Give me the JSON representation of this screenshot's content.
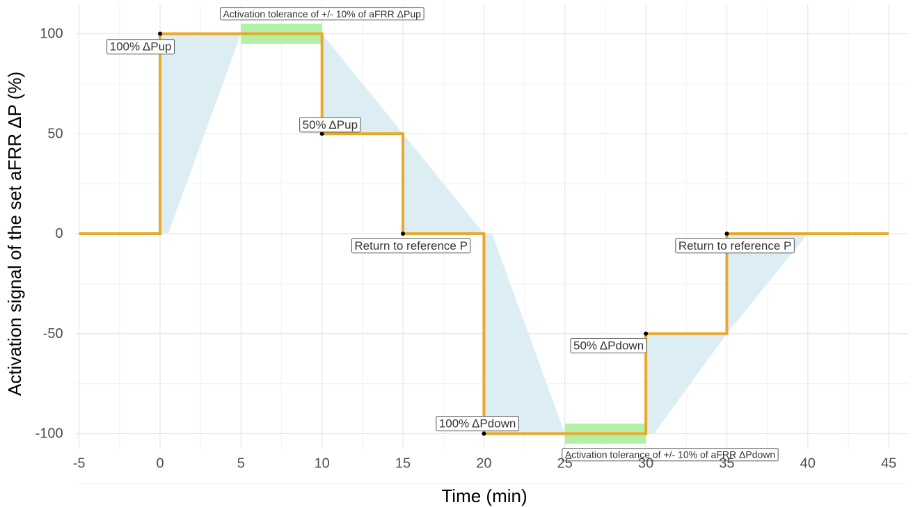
{
  "chart_data": {
    "type": "line",
    "title": "",
    "xlabel": "Time (min)",
    "ylabel": "Activation signal of the set aFRR ΔP (%)",
    "xlim": [
      -5,
      45
    ],
    "ylim": [
      -100,
      100
    ],
    "x_ticks": [
      -5,
      0,
      5,
      10,
      15,
      20,
      25,
      30,
      35,
      40,
      45
    ],
    "y_ticks": [
      -100,
      -50,
      0,
      50,
      100
    ],
    "grid": true,
    "legend": "none",
    "series": [
      {
        "type": "step",
        "color": "#E8A92A",
        "x": [
          -5,
          0,
          0,
          10,
          10,
          15,
          15,
          20,
          20,
          30,
          30,
          35,
          35,
          45
        ],
        "y": [
          0,
          0,
          100,
          100,
          50,
          50,
          0,
          0,
          -100,
          -100,
          -50,
          -50,
          0,
          0
        ]
      }
    ],
    "points": [
      {
        "x": 0,
        "y": 100
      },
      {
        "x": 10,
        "y": 50
      },
      {
        "x": 15,
        "y": 0
      },
      {
        "x": 20,
        "y": -100
      },
      {
        "x": 30,
        "y": -50
      },
      {
        "x": 35,
        "y": 0
      }
    ],
    "ramp_regions": {
      "color": "#DCEDF3",
      "polygons": [
        [
          [
            0,
            100
          ],
          [
            0,
            0
          ],
          [
            0.5,
            0
          ],
          [
            5,
            100
          ]
        ],
        [
          [
            10,
            100
          ],
          [
            10,
            50
          ],
          [
            15,
            50
          ]
        ],
        [
          [
            15,
            50
          ],
          [
            15,
            0
          ],
          [
            20,
            0
          ]
        ],
        [
          [
            20,
            0
          ],
          [
            20,
            -100
          ],
          [
            25,
            -100
          ],
          [
            20.5,
            0
          ]
        ],
        [
          [
            30,
            -100
          ],
          [
            30,
            -50
          ],
          [
            35,
            -50
          ],
          [
            30.5,
            -100
          ]
        ],
        [
          [
            35,
            -50
          ],
          [
            35,
            0
          ],
          [
            40,
            0
          ]
        ]
      ]
    },
    "tolerance_bands": {
      "color": "#B2F0A8",
      "rects": [
        {
          "x0": 5,
          "x1": 10,
          "y0": 95,
          "y1": 105
        },
        {
          "x0": 25,
          "x1": 30,
          "y0": -105,
          "y1": -95
        }
      ]
    },
    "annotations": [
      {
        "text": "Activation tolerance of +/- 10% of aFRR ΔPup",
        "x": 10,
        "y": 110,
        "size": 14
      },
      {
        "text": "100% ΔPup",
        "x": -1.2,
        "y": 93.5,
        "size": 17
      },
      {
        "text": "50% ΔPup",
        "x": 10.5,
        "y": 54.5,
        "size": 17
      },
      {
        "text": "Return to reference P",
        "x": 15.5,
        "y": -6,
        "size": 17
      },
      {
        "text": "100% ΔPdown",
        "x": 19.6,
        "y": -95,
        "size": 17
      },
      {
        "text": "Activation tolerance of +/- 10% of aFRR ΔPdown",
        "x": 31.5,
        "y": -110.5,
        "size": 14
      },
      {
        "text": "50% ΔPdown",
        "x": 27.7,
        "y": -56,
        "size": 17
      },
      {
        "text": "Return to reference P",
        "x": 35.5,
        "y": -6,
        "size": 17
      }
    ]
  }
}
